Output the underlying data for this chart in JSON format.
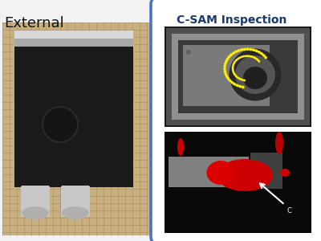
{
  "title_left": "External",
  "title_right": "C-SAM Inspection",
  "bg_color": "#f2f2f2",
  "box_border_color": "#4472c4",
  "title_color": "#1a3a6b",
  "left_panel": {
    "bg": "#c8b080",
    "grid_color": "#a08858",
    "package_color": "#1a1a1a",
    "lead_color": "#c8c8c8",
    "circle_color": "#151515",
    "tab_color": "#d8d8d8",
    "tab_dark": "#a8a8a8"
  },
  "right_panel": {
    "yellow": "#ffee00",
    "red": "#cc0000",
    "white": "#ffffff",
    "top_bg": "#303030",
    "pkg_gray": "#888888",
    "pkg_light": "#b0b0b0",
    "die_dark": "#444444",
    "bottom_bg": "#080808"
  }
}
